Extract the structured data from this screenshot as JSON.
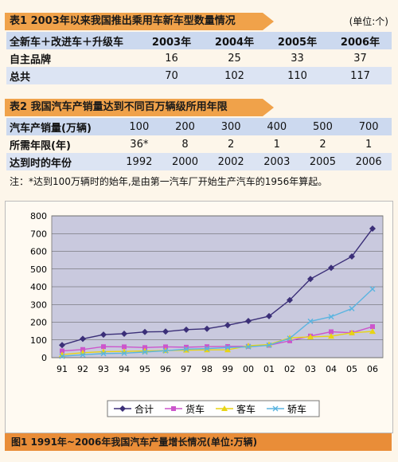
{
  "table1": {
    "title": "表1 2003年以来我国推出乘用车新车型数量情况",
    "unit": "(单位:个)",
    "header": [
      "全新车＋改进车＋升级车",
      "2003年",
      "2004年",
      "2005年",
      "2006年"
    ],
    "rows": [
      [
        "自主品牌",
        "16",
        "25",
        "33",
        "37"
      ],
      [
        "总共",
        "70",
        "102",
        "110",
        "117"
      ]
    ]
  },
  "table2": {
    "title": "表2 我国汽车产销量达到不同百万辆级所用年限",
    "rows": [
      [
        "汽车产销量(万辆)",
        "100",
        "200",
        "300",
        "400",
        "500",
        "700"
      ],
      [
        "所需年限(年)",
        "36*",
        "8",
        "2",
        "1",
        "2",
        "1"
      ],
      [
        "达到时的年份",
        "1992",
        "2000",
        "2002",
        "2003",
        "2005",
        "2006"
      ]
    ]
  },
  "note": "注：*达到100万辆时的始年,是由第一汽车厂开始生产汽车的1956年算起。",
  "figure_caption": "图1 1991年~2006年我国汽车产量增长情况(单位:万辆)",
  "chart_data": {
    "type": "line",
    "categories": [
      "91",
      "92",
      "93",
      "94",
      "95",
      "96",
      "97",
      "98",
      "99",
      "00",
      "01",
      "02",
      "03",
      "04",
      "05",
      "06"
    ],
    "ylim": [
      0,
      800
    ],
    "yticks": [
      0,
      100,
      200,
      300,
      400,
      500,
      600,
      700,
      800
    ],
    "grid": true,
    "legend_position": "bottom",
    "series": [
      {
        "name": "合计",
        "color": "#3b2f78",
        "marker": "diamond",
        "values": [
          71,
          106,
          130,
          135,
          145,
          147,
          158,
          163,
          183,
          207,
          234,
          325,
          444,
          507,
          571,
          728
        ]
      },
      {
        "name": "货车",
        "color": "#cc55cc",
        "marker": "square",
        "values": [
          38,
          46,
          62,
          61,
          57,
          61,
          59,
          62,
          63,
          64,
          70,
          95,
          122,
          146,
          140,
          175
        ]
      },
      {
        "name": "客车",
        "color": "#e8d414",
        "marker": "triangle",
        "values": [
          17,
          28,
          34,
          35,
          38,
          40,
          42,
          44,
          44,
          67,
          74,
          112,
          117,
          121,
          140,
          148
        ]
      },
      {
        "name": "轿车",
        "color": "#5ab4e0",
        "marker": "x",
        "values": [
          8,
          16,
          23,
          25,
          32,
          39,
          48,
          51,
          57,
          61,
          70,
          109,
          205,
          231,
          277,
          387
        ]
      }
    ]
  }
}
